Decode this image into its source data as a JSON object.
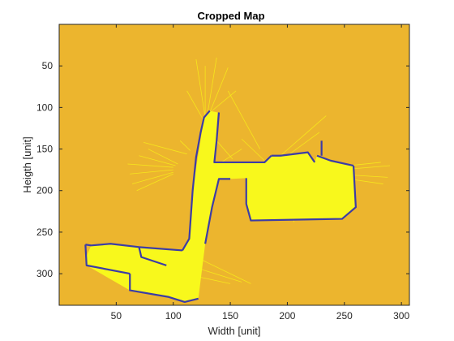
{
  "chart_data": {
    "type": "heatmap",
    "title": "Cropped Map",
    "xlabel": "Width [unit]",
    "ylabel": "Heigth [unit]",
    "xlim": [
      0,
      307
    ],
    "ylim": [
      0,
      338
    ],
    "y_reversed": true,
    "grid": false,
    "x_ticks": [
      50,
      100,
      150,
      200,
      250,
      300
    ],
    "y_ticks": [
      50,
      100,
      150,
      200,
      250,
      300
    ],
    "x_tick_labels": [
      "50",
      "100",
      "150",
      "200",
      "250",
      "300"
    ],
    "y_tick_labels": [
      "50",
      "100",
      "150",
      "200",
      "250",
      "300"
    ],
    "colors": {
      "unknown": "#ecb52e",
      "free": "#f8f81c",
      "occupied": "#3c3ca6",
      "ray": "#f6e61c"
    },
    "free_polygons": [
      [
        [
          23,
          282
        ],
        [
          28,
          266
        ],
        [
          45,
          264
        ],
        [
          108,
          272
        ],
        [
          114,
          258
        ],
        [
          117,
          200
        ],
        [
          127,
          112
        ],
        [
          132,
          104
        ],
        [
          139,
          106
        ],
        [
          136,
          166
        ],
        [
          180,
          166
        ],
        [
          186,
          158
        ],
        [
          194,
          158
        ],
        [
          218,
          154
        ],
        [
          224,
          166
        ],
        [
          226,
          158
        ],
        [
          238,
          164
        ],
        [
          258,
          170
        ],
        [
          260,
          220
        ],
        [
          248,
          234
        ],
        [
          168,
          236
        ],
        [
          164,
          216
        ],
        [
          164,
          185
        ],
        [
          150,
          186
        ],
        [
          140,
          186
        ],
        [
          134,
          220
        ],
        [
          128,
          264
        ],
        [
          122,
          330
        ],
        [
          110,
          334
        ],
        [
          96,
          328
        ],
        [
          62,
          320
        ],
        [
          24,
          290
        ]
      ]
    ],
    "rays": [
      {
        "x1": 100,
        "y1": 175,
        "x2": 62,
        "y2": 180
      },
      {
        "x1": 100,
        "y1": 172,
        "x2": 60,
        "y2": 168
      },
      {
        "x1": 100,
        "y1": 178,
        "x2": 64,
        "y2": 192
      },
      {
        "x1": 102,
        "y1": 170,
        "x2": 70,
        "y2": 158
      },
      {
        "x1": 104,
        "y1": 168,
        "x2": 78,
        "y2": 150
      },
      {
        "x1": 100,
        "y1": 180,
        "x2": 68,
        "y2": 200
      },
      {
        "x1": 112,
        "y1": 156,
        "x2": 74,
        "y2": 142
      },
      {
        "x1": 115,
        "y1": 152,
        "x2": 106,
        "y2": 140
      },
      {
        "x1": 128,
        "y1": 112,
        "x2": 120,
        "y2": 42
      },
      {
        "x1": 130,
        "y1": 108,
        "x2": 138,
        "y2": 40
      },
      {
        "x1": 132,
        "y1": 106,
        "x2": 148,
        "y2": 52
      },
      {
        "x1": 128,
        "y1": 110,
        "x2": 128,
        "y2": 50
      },
      {
        "x1": 126,
        "y1": 114,
        "x2": 112,
        "y2": 80
      },
      {
        "x1": 134,
        "y1": 104,
        "x2": 155,
        "y2": 80
      },
      {
        "x1": 138,
        "y1": 140,
        "x2": 152,
        "y2": 162
      },
      {
        "x1": 148,
        "y1": 80,
        "x2": 176,
        "y2": 150
      },
      {
        "x1": 120,
        "y1": 280,
        "x2": 168,
        "y2": 312
      },
      {
        "x1": 118,
        "y1": 292,
        "x2": 160,
        "y2": 310
      },
      {
        "x1": 116,
        "y1": 302,
        "x2": 150,
        "y2": 312
      },
      {
        "x1": 194,
        "y1": 158,
        "x2": 234,
        "y2": 110
      },
      {
        "x1": 200,
        "y1": 158,
        "x2": 228,
        "y2": 130
      },
      {
        "x1": 180,
        "y1": 164,
        "x2": 160,
        "y2": 138
      },
      {
        "x1": 238,
        "y1": 176,
        "x2": 290,
        "y2": 170
      },
      {
        "x1": 240,
        "y1": 180,
        "x2": 288,
        "y2": 184
      },
      {
        "x1": 244,
        "y1": 184,
        "x2": 284,
        "y2": 192
      },
      {
        "x1": 240,
        "y1": 172,
        "x2": 282,
        "y2": 166
      },
      {
        "x1": 200,
        "y1": 208,
        "x2": 206,
        "y2": 238
      },
      {
        "x1": 160,
        "y1": 150,
        "x2": 140,
        "y2": 168
      }
    ],
    "walls": [
      [
        [
          23,
          265
        ],
        [
          28,
          266
        ],
        [
          45,
          264
        ],
        [
          70,
          268
        ],
        [
          108,
          272
        ]
      ],
      [
        [
          23,
          265
        ],
        [
          24,
          290
        ],
        [
          62,
          300
        ]
      ],
      [
        [
          62,
          300
        ],
        [
          62,
          320
        ],
        [
          96,
          328
        ],
        [
          110,
          334
        ],
        [
          122,
          330
        ]
      ],
      [
        [
          108,
          272
        ],
        [
          114,
          258
        ],
        [
          117,
          200
        ],
        [
          120,
          160
        ],
        [
          124,
          130
        ],
        [
          127,
          112
        ],
        [
          132,
          104
        ]
      ],
      [
        [
          140,
          106
        ],
        [
          138,
          140
        ],
        [
          136,
          166
        ],
        [
          180,
          166
        ],
        [
          186,
          158
        ]
      ],
      [
        [
          128,
          264
        ],
        [
          134,
          220
        ],
        [
          140,
          186
        ],
        [
          150,
          186
        ]
      ],
      [
        [
          164,
          185
        ],
        [
          164,
          216
        ],
        [
          168,
          236
        ],
        [
          248,
          234
        ],
        [
          260,
          220
        ],
        [
          258,
          170
        ]
      ],
      [
        [
          226,
          158
        ],
        [
          238,
          164
        ],
        [
          258,
          170
        ]
      ],
      [
        [
          186,
          158
        ],
        [
          194,
          158
        ],
        [
          218,
          154
        ],
        [
          224,
          166
        ]
      ],
      [
        [
          70,
          268
        ],
        [
          72,
          280
        ],
        [
          94,
          290
        ]
      ],
      [
        [
          230,
          140
        ],
        [
          230,
          158
        ]
      ]
    ]
  }
}
